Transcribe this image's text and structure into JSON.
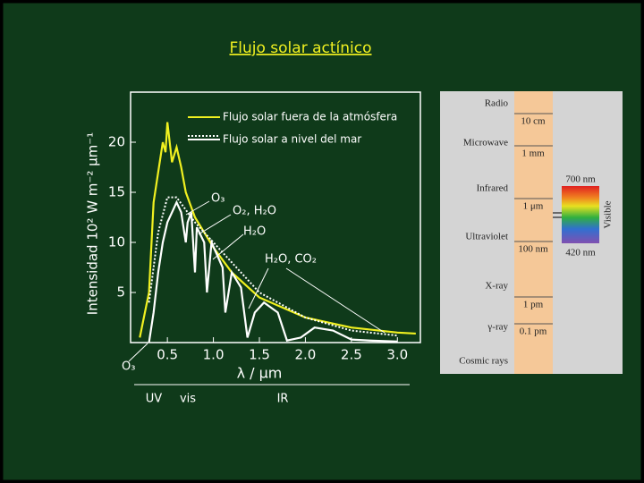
{
  "title": "Flujo solar actínico",
  "chart_data": {
    "type": "line",
    "xlabel": "λ / μm",
    "ylabel": "Intensidad 10² W m⁻² μm⁻¹",
    "xlim": [
      0.1,
      3.25
    ],
    "ylim": [
      0,
      25
    ],
    "xticks": [
      0.5,
      {
        "value": 1,
        "label": "1.0"
      },
      1.5,
      {
        "value": 2,
        "label": "2.0"
      },
      2.5,
      {
        "value": 3,
        "label": "3.0"
      }
    ],
    "yticks": [
      5,
      10,
      15,
      20
    ],
    "series": [
      {
        "name": "Flujo solar fuera de la atmósfera",
        "color": "#f0f020",
        "x": [
          0.2,
          0.3,
          0.35,
          0.4,
          0.45,
          0.48,
          0.5,
          0.55,
          0.6,
          0.65,
          0.7,
          0.8,
          0.9,
          1.0,
          1.2,
          1.5,
          2.0,
          2.5,
          3.0,
          3.2
        ],
        "values": [
          0.5,
          5,
          14,
          17,
          20,
          19,
          22,
          18,
          19.5,
          17.5,
          15,
          12.5,
          11,
          9.5,
          7,
          4.5,
          2.5,
          1.5,
          1,
          0.9
        ]
      },
      {
        "color": "#ffffff",
        "dashed": true,
        "x": [
          0.3,
          0.4,
          0.5,
          0.6,
          0.8,
          1.0,
          1.5,
          2.0,
          2.5,
          3.0
        ],
        "values": [
          4,
          11,
          14.5,
          14.5,
          12,
          10,
          5,
          2.5,
          1.2,
          0.7
        ]
      },
      {
        "name": "Flujo solar a nivel del mar",
        "color": "#ffffff",
        "x": [
          0.3,
          0.35,
          0.4,
          0.45,
          0.5,
          0.55,
          0.6,
          0.65,
          0.7,
          0.72,
          0.76,
          0.8,
          0.82,
          0.9,
          0.93,
          0.98,
          1.1,
          1.13,
          1.2,
          1.3,
          1.37,
          1.45,
          1.55,
          1.7,
          1.8,
          1.95,
          2.1,
          2.3,
          2.5,
          2.7,
          3.0
        ],
        "values": [
          0,
          3,
          7,
          10,
          12,
          13,
          14,
          13,
          10,
          12,
          13,
          7,
          11.5,
          10,
          5,
          10,
          7.5,
          3,
          7,
          5.5,
          0.5,
          3,
          4,
          3,
          0.2,
          0.5,
          1.5,
          1.2,
          0.3,
          0.2,
          0.1
        ]
      }
    ],
    "annotations": [
      "O₃",
      "O₂, H₂O",
      "H₂O",
      "H₂O, CO₂",
      "O₃",
      "UV",
      "vis",
      "IR"
    ]
  },
  "spectrum": {
    "bands": [
      "Radio",
      "Microwave",
      "Infrared",
      "Ultraviolet",
      "X-ray",
      "γ-ray",
      "Cosmic rays"
    ],
    "wavelengths": [
      "10 cm",
      "1 mm",
      "1 μm",
      "100 nm",
      "1 pm",
      "0.1 pm"
    ],
    "visible": {
      "label": "Visible",
      "top": "700 nm",
      "bottom": "420 nm"
    }
  }
}
